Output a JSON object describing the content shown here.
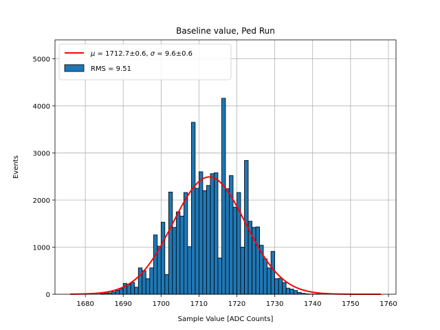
{
  "chart_data": {
    "type": "bar",
    "title": "Baseline value, Ped Run",
    "xlabel": "Sample Value [ADC Counts]",
    "ylabel": "Events",
    "xlim": [
      1672,
      1762
    ],
    "ylim": [
      0,
      5400
    ],
    "xticks": [
      1680,
      1690,
      1700,
      1710,
      1720,
      1730,
      1740,
      1750,
      1760
    ],
    "yticks": [
      0,
      1000,
      2000,
      3000,
      4000,
      5000
    ],
    "grid": true,
    "legend_position": "top-left",
    "histogram": {
      "name": "RMS = 9.51",
      "bin_width": 1,
      "bin_starts": [
        1684,
        1685,
        1686,
        1687,
        1688,
        1689,
        1690,
        1691,
        1692,
        1693,
        1694,
        1695,
        1696,
        1697,
        1698,
        1699,
        1700,
        1701,
        1702,
        1703,
        1704,
        1705,
        1706,
        1707,
        1708,
        1709,
        1710,
        1711,
        1712,
        1713,
        1714,
        1715,
        1716,
        1717,
        1718,
        1719,
        1720,
        1721,
        1722,
        1723,
        1724,
        1725,
        1726,
        1727,
        1728,
        1729,
        1730,
        1731,
        1732,
        1733,
        1734,
        1735,
        1736,
        1737,
        1738,
        1739,
        1740,
        1741
      ],
      "counts": [
        10,
        20,
        30,
        50,
        80,
        120,
        230,
        210,
        250,
        150,
        560,
        500,
        330,
        560,
        1260,
        1020,
        1530,
        420,
        2170,
        1420,
        1750,
        1660,
        2160,
        1010,
        3650,
        2250,
        2600,
        2200,
        2310,
        2560,
        2580,
        770,
        4160,
        2240,
        2520,
        1850,
        2160,
        1000,
        2840,
        1550,
        1420,
        1430,
        1040,
        750,
        560,
        910,
        330,
        340,
        250,
        130,
        110,
        80,
        40,
        20,
        10,
        5,
        5,
        5
      ],
      "color": "#1f77b4",
      "edge_color": "#000000"
    },
    "fit": {
      "name_parts": [
        "μ",
        " = 1712.7±0.6, ",
        "σ",
        " = 9.6±0.6"
      ],
      "mu": 1712.7,
      "sigma": 9.6,
      "amplitude": 2490,
      "x_range": [
        1676,
        1758
      ],
      "color": "#ff0000"
    }
  }
}
